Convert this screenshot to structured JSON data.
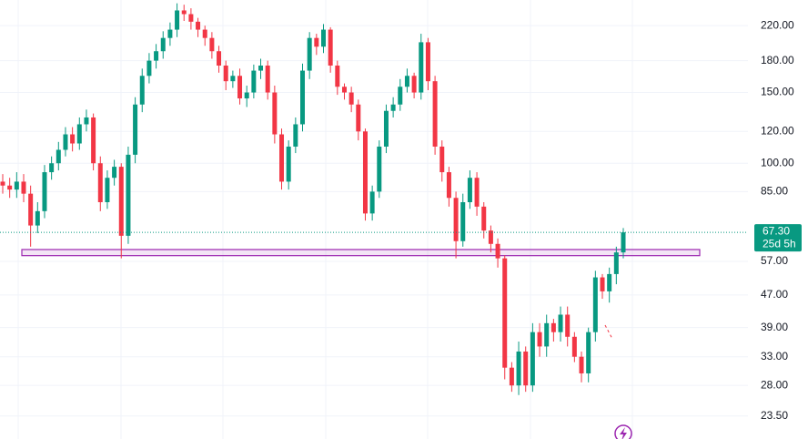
{
  "chart_data": {
    "type": "candlestick",
    "open": [
      90,
      88,
      86,
      90,
      84,
      70,
      76,
      95,
      100,
      108,
      118,
      112,
      125,
      130,
      100,
      80,
      92,
      98,
      66,
      105,
      140,
      165,
      180,
      190,
      205,
      215,
      240,
      235,
      225,
      215,
      205,
      190,
      175,
      160,
      165,
      145,
      150,
      170,
      175,
      150,
      118,
      90,
      110,
      125,
      170,
      205,
      195,
      215,
      175,
      155,
      150,
      140,
      120,
      75,
      85,
      110,
      135,
      140,
      155,
      165,
      150,
      200,
      160,
      110,
      95,
      82,
      64,
      80,
      92,
      78,
      68,
      63,
      58,
      31,
      28,
      34,
      28,
      38,
      35,
      40,
      38,
      42,
      37,
      33,
      30,
      38,
      52,
      48,
      53,
      60
    ],
    "high": [
      94,
      92,
      95,
      94,
      88,
      80,
      99,
      104,
      113,
      123,
      123,
      130,
      136,
      133,
      104,
      96,
      102,
      100,
      110,
      146,
      172,
      188,
      198,
      213,
      224,
      250,
      248,
      243,
      230,
      220,
      212,
      196,
      180,
      170,
      172,
      156,
      176,
      182,
      180,
      156,
      122,
      114,
      130,
      177,
      212,
      210,
      222,
      218,
      180,
      158,
      155,
      144,
      122,
      88,
      114,
      140,
      146,
      162,
      172,
      168,
      210,
      205,
      165,
      114,
      98,
      85,
      84,
      96,
      95,
      80,
      70,
      65,
      59,
      32,
      36,
      35,
      40,
      40,
      42,
      41,
      44,
      44,
      38,
      34,
      39,
      54,
      53,
      55,
      62,
      69
    ],
    "low": [
      84,
      82,
      82,
      80,
      62,
      67,
      73,
      91,
      96,
      104,
      107,
      108,
      120,
      96,
      76,
      77,
      88,
      58,
      63,
      100,
      134,
      158,
      172,
      182,
      196,
      206,
      226,
      215,
      206,
      196,
      182,
      168,
      152,
      154,
      140,
      138,
      145,
      162,
      144,
      112,
      86,
      86,
      106,
      120,
      162,
      186,
      188,
      168,
      148,
      144,
      134,
      114,
      72,
      72,
      82,
      106,
      130,
      135,
      150,
      145,
      144,
      152,
      105,
      90,
      78,
      58,
      62,
      77,
      74,
      65,
      60,
      55,
      29,
      27,
      26.5,
      27,
      27,
      33,
      33,
      36,
      36,
      35,
      32,
      28.5,
      28.5,
      36,
      46,
      45,
      50,
      58
    ],
    "close": [
      88,
      86,
      90,
      84,
      70,
      76,
      95,
      100,
      108,
      118,
      112,
      125,
      130,
      100,
      80,
      92,
      98,
      66,
      105,
      140,
      165,
      180,
      190,
      205,
      215,
      240,
      235,
      225,
      215,
      205,
      190,
      175,
      160,
      165,
      145,
      150,
      170,
      175,
      150,
      118,
      90,
      110,
      125,
      170,
      205,
      195,
      215,
      175,
      155,
      150,
      140,
      120,
      75,
      85,
      110,
      135,
      140,
      155,
      165,
      150,
      200,
      160,
      110,
      95,
      82,
      64,
      80,
      92,
      78,
      68,
      63,
      58,
      31,
      28,
      34,
      28,
      38,
      35,
      40,
      38,
      42,
      37,
      33,
      30,
      38,
      52,
      48,
      53,
      60,
      67.3
    ],
    "up_color": "#089981",
    "down_color": "#f23645",
    "log_scale": true,
    "grid": true,
    "ylim": [
      20.6,
      254.8
    ],
    "yticks": [
      {
        "value": 23.5,
        "label": "23.50"
      },
      {
        "value": 28,
        "label": "28.00"
      },
      {
        "value": 33,
        "label": "33.00"
      },
      {
        "value": 39,
        "label": "39.00"
      },
      {
        "value": 47,
        "label": "47.00"
      },
      {
        "value": 57,
        "label": "57.00"
      },
      {
        "value": 85,
        "label": "85.00"
      },
      {
        "value": 100,
        "label": "100.00"
      },
      {
        "value": 120,
        "label": "120.00"
      },
      {
        "value": 150,
        "label": "150.00"
      },
      {
        "value": 180,
        "label": "180.00"
      },
      {
        "value": 220,
        "label": "220.00"
      }
    ],
    "last_price": {
      "value": 67.3,
      "label": "67.30"
    },
    "countdown": "25d 5h",
    "zone": {
      "low": 58.9,
      "high": 61.0,
      "color": "#9c27b0"
    }
  }
}
